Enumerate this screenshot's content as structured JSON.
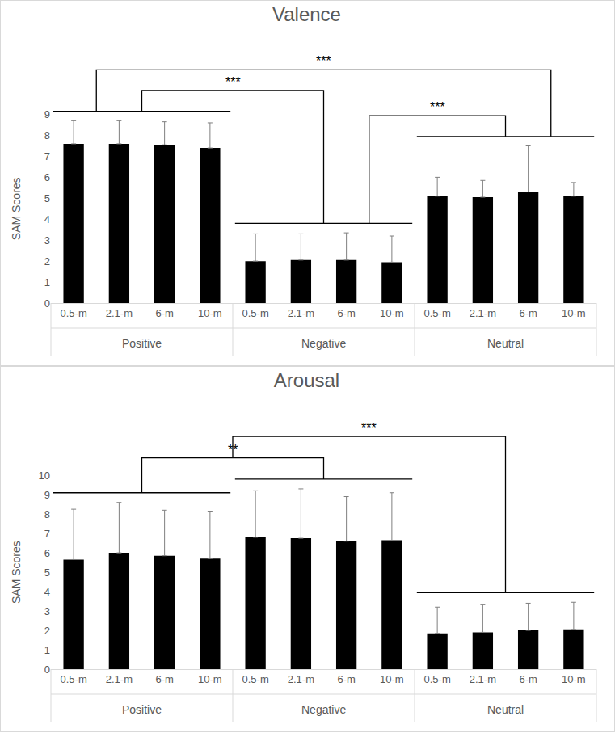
{
  "chart_data": [
    {
      "type": "bar",
      "title": "Valence",
      "y_label": "SAM Scores",
      "color": "#000000",
      "grid": false,
      "ylim": [
        0,
        9
      ],
      "yticks": [
        0,
        1,
        2,
        3,
        4,
        5,
        6,
        7,
        8,
        9
      ],
      "groups": [
        {
          "name": "Positive",
          "categories": [
            "0.5-m",
            "2.1-m",
            "6-m",
            "10-m"
          ],
          "values": [
            7.6,
            7.6,
            7.55,
            7.4
          ],
          "errors": [
            1.1,
            1.1,
            1.1,
            1.2
          ]
        },
        {
          "name": "Negative",
          "categories": [
            "0.5-m",
            "2.1-m",
            "6-m",
            "10-m"
          ],
          "values": [
            2.0,
            2.05,
            2.05,
            1.95
          ],
          "errors": [
            1.3,
            1.25,
            1.3,
            1.25
          ]
        },
        {
          "name": "Neutral",
          "categories": [
            "0.5-m",
            "2.1-m",
            "6-m",
            "10-m"
          ],
          "values": [
            5.1,
            5.05,
            5.3,
            5.1
          ],
          "errors": [
            0.9,
            0.8,
            2.2,
            0.65
          ]
        }
      ],
      "comparisons": [
        {
          "between": [
            "Positive",
            "Negative"
          ],
          "label": "***"
        },
        {
          "between": [
            "Negative",
            "Neutral"
          ],
          "label": "***"
        },
        {
          "between": [
            "Positive",
            "Neutral"
          ],
          "label": "***"
        }
      ]
    },
    {
      "type": "bar",
      "title": "Arousal",
      "y_label": "SAM Scores",
      "color": "#000000",
      "grid": false,
      "ylim": [
        0,
        10
      ],
      "yticks": [
        0,
        1,
        2,
        3,
        4,
        5,
        6,
        7,
        8,
        9,
        10
      ],
      "groups": [
        {
          "name": "Positive",
          "categories": [
            "0.5-m",
            "2.1-m",
            "6-m",
            "10-m"
          ],
          "values": [
            5.65,
            6.0,
            5.85,
            5.7
          ],
          "errors": [
            2.6,
            2.6,
            2.35,
            2.45
          ]
        },
        {
          "name": "Negative",
          "categories": [
            "0.5-m",
            "2.1-m",
            "6-m",
            "10-m"
          ],
          "values": [
            6.8,
            6.75,
            6.6,
            6.65
          ],
          "errors": [
            2.4,
            2.55,
            2.3,
            2.45
          ]
        },
        {
          "name": "Neutral",
          "categories": [
            "0.5-m",
            "2.1-m",
            "6-m",
            "10-m"
          ],
          "values": [
            1.85,
            1.9,
            2.0,
            2.05
          ],
          "errors": [
            1.35,
            1.45,
            1.4,
            1.4
          ]
        }
      ],
      "comparisons": [
        {
          "between": [
            "Positive",
            "Negative"
          ],
          "label": "**"
        },
        {
          "between": [
            [
              "Positive",
              "Negative"
            ],
            "Neutral"
          ],
          "label": "***"
        }
      ]
    }
  ]
}
